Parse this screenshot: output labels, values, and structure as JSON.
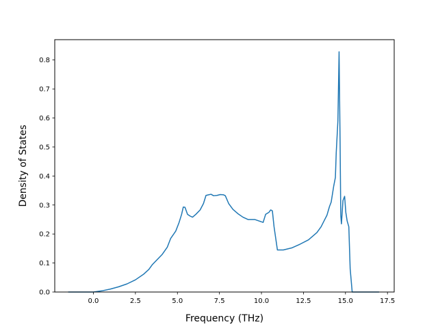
{
  "chart_data": {
    "type": "line",
    "title": "",
    "xlabel": "Frequency (THz)",
    "ylabel": "Density of States",
    "xlim": [
      -2.3,
      17.9
    ],
    "ylim": [
      0.0,
      0.87
    ],
    "xticks": [
      0.0,
      2.5,
      5.0,
      7.5,
      10.0,
      12.5,
      15.0,
      17.5
    ],
    "xtick_labels": [
      "0.0",
      "2.5",
      "5.0",
      "7.5",
      "10.0",
      "12.5",
      "15.0",
      "17.5"
    ],
    "yticks": [
      0.0,
      0.1,
      0.2,
      0.3,
      0.4,
      0.5,
      0.6,
      0.7,
      0.8
    ],
    "ytick_labels": [
      "0.0",
      "0.1",
      "0.2",
      "0.3",
      "0.4",
      "0.5",
      "0.6",
      "0.7",
      "0.8"
    ],
    "grid": false,
    "line_color": "#1f77b4",
    "series": [
      {
        "x": [
          -1.5,
          -1.0,
          -0.5,
          0.0,
          0.5,
          1.0,
          1.5,
          2.0,
          2.5,
          3.0,
          3.3,
          3.5,
          3.8,
          4.1,
          4.4,
          4.6,
          4.9,
          5.1,
          5.25,
          5.35,
          5.45,
          5.6,
          5.75,
          5.9,
          6.1,
          6.35,
          6.55,
          6.7,
          6.85,
          7.0,
          7.15,
          7.35,
          7.55,
          7.75,
          7.85,
          8.05,
          8.3,
          8.6,
          8.9,
          9.2,
          9.6,
          9.85,
          10.1,
          10.25,
          10.45,
          10.55,
          10.65,
          10.75,
          10.95,
          11.3,
          11.8,
          12.3,
          12.8,
          13.3,
          13.55,
          13.75,
          13.9,
          14.05,
          14.15,
          14.3,
          14.4,
          14.45,
          14.55,
          14.62,
          14.68,
          14.72,
          14.76,
          14.85,
          14.95,
          15.02,
          15.1,
          15.2,
          15.28,
          15.4,
          15.5,
          16.0,
          16.5,
          17.0
        ],
        "y": [
          0.0,
          0.0,
          0.0,
          0.0,
          0.004,
          0.01,
          0.018,
          0.028,
          0.042,
          0.062,
          0.078,
          0.094,
          0.112,
          0.13,
          0.155,
          0.185,
          0.21,
          0.24,
          0.268,
          0.293,
          0.292,
          0.268,
          0.262,
          0.258,
          0.268,
          0.283,
          0.305,
          0.333,
          0.335,
          0.337,
          0.332,
          0.333,
          0.336,
          0.335,
          0.332,
          0.305,
          0.285,
          0.27,
          0.258,
          0.25,
          0.25,
          0.245,
          0.24,
          0.268,
          0.275,
          0.283,
          0.28,
          0.225,
          0.145,
          0.145,
          0.152,
          0.165,
          0.18,
          0.205,
          0.225,
          0.248,
          0.265,
          0.295,
          0.31,
          0.365,
          0.395,
          0.48,
          0.59,
          0.828,
          0.52,
          0.265,
          0.235,
          0.315,
          0.33,
          0.275,
          0.245,
          0.225,
          0.08,
          0.0,
          0.0,
          0.0,
          0.0,
          0.0
        ]
      }
    ]
  }
}
